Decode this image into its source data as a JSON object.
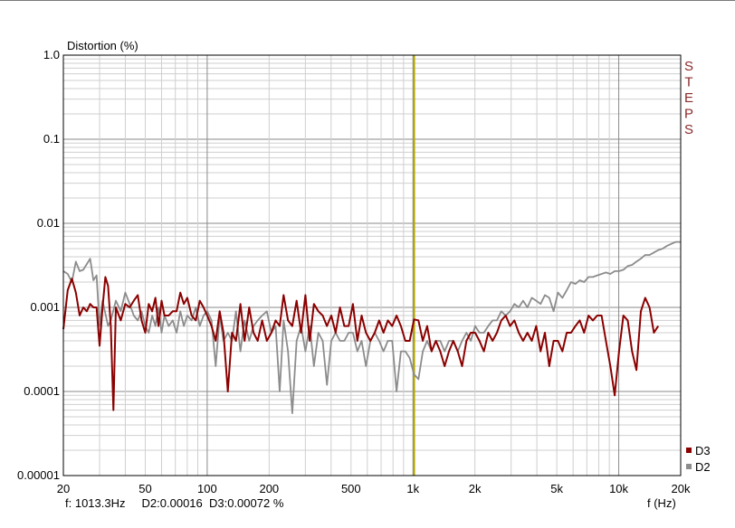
{
  "chart_data": {
    "type": "line",
    "ylabel": "Distortion (%)",
    "xlabel": "f (Hz)",
    "x_scale": "log",
    "y_scale": "log",
    "xlim": [
      20,
      20000
    ],
    "ylim": [
      1e-05,
      1.0
    ],
    "x_ticks": [
      {
        "value": 20,
        "label": "20"
      },
      {
        "value": 50,
        "label": "50"
      },
      {
        "value": 100,
        "label": "100"
      },
      {
        "value": 200,
        "label": "200"
      },
      {
        "value": 500,
        "label": "500"
      },
      {
        "value": 1000,
        "label": "1k"
      },
      {
        "value": 2000,
        "label": "2k"
      },
      {
        "value": 5000,
        "label": "5k"
      },
      {
        "value": 10000,
        "label": "10k"
      },
      {
        "value": 20000,
        "label": "20k"
      }
    ],
    "y_ticks": [
      {
        "value": 1.0,
        "label": "1.0"
      },
      {
        "value": 0.1,
        "label": "0.1"
      },
      {
        "value": 0.01,
        "label": "0.01"
      },
      {
        "value": 0.001,
        "label": "0.001"
      },
      {
        "value": 0.0001,
        "label": "0.0001"
      },
      {
        "value": 1e-05,
        "label": "0.00001"
      }
    ],
    "grid": true,
    "legend_position": "bottom-right",
    "brand_text": "STEPS",
    "cursor": {
      "x": 1013.3,
      "color": "#b5a800",
      "readout": "f: 1013.3Hz     D2:0.00016  D3:0.00072 %"
    },
    "series": [
      {
        "name": "D2",
        "color": "#8c8c8c",
        "points": [
          [
            20,
            0.0027
          ],
          [
            21,
            0.0025
          ],
          [
            22,
            0.002
          ],
          [
            23,
            0.0035
          ],
          [
            24,
            0.0027
          ],
          [
            25,
            0.0028
          ],
          [
            27,
            0.0038
          ],
          [
            28,
            0.0021
          ],
          [
            29,
            0.0024
          ],
          [
            30,
            0.0006
          ],
          [
            31,
            0.0012
          ],
          [
            33,
            0.0006
          ],
          [
            34,
            0.0007
          ],
          [
            36,
            0.0012
          ],
          [
            38,
            0.0009
          ],
          [
            40,
            0.0015
          ],
          [
            42,
            0.0011
          ],
          [
            44,
            0.0008
          ],
          [
            46,
            0.0007
          ],
          [
            48,
            0.0009
          ],
          [
            50,
            0.0006
          ],
          [
            52,
            0.0005
          ],
          [
            54,
            0.0008
          ],
          [
            56,
            0.0006
          ],
          [
            58,
            0.001
          ],
          [
            60,
            0.0005
          ],
          [
            62,
            0.0008
          ],
          [
            65,
            0.0006
          ],
          [
            68,
            0.0007
          ],
          [
            71,
            0.0005
          ],
          [
            74,
            0.0009
          ],
          [
            77,
            0.0006
          ],
          [
            80,
            0.0008
          ],
          [
            84,
            0.0007
          ],
          [
            88,
            0.001
          ],
          [
            92,
            0.0006
          ],
          [
            96,
            0.0008
          ],
          [
            100,
            0.0009
          ],
          [
            105,
            0.0007
          ],
          [
            110,
            0.0002
          ],
          [
            115,
            0.0008
          ],
          [
            120,
            0.0004
          ],
          [
            126,
            0.0005
          ],
          [
            132,
            0.0004
          ],
          [
            138,
            0.0009
          ],
          [
            145,
            0.0003
          ],
          [
            152,
            0.0007
          ],
          [
            160,
            0.0004
          ],
          [
            168,
            0.0006
          ],
          [
            176,
            0.0007
          ],
          [
            185,
            0.0008
          ],
          [
            195,
            0.0009
          ],
          [
            205,
            0.0005
          ],
          [
            215,
            0.0006
          ],
          [
            225,
            0.0001
          ],
          [
            235,
            0.0007
          ],
          [
            247,
            0.0003
          ],
          [
            259,
            5.5e-05
          ],
          [
            272,
            0.0004
          ],
          [
            286,
            0.0006
          ],
          [
            300,
            0.0003
          ],
          [
            315,
            0.0006
          ],
          [
            330,
            0.0002
          ],
          [
            347,
            0.0005
          ],
          [
            364,
            0.0004
          ],
          [
            382,
            0.00012
          ],
          [
            401,
            0.0004
          ],
          [
            421,
            0.0005
          ],
          [
            442,
            0.0004
          ],
          [
            464,
            0.0004
          ],
          [
            487,
            0.0005
          ],
          [
            511,
            0.0005
          ],
          [
            537,
            0.0003
          ],
          [
            563,
            0.0004
          ],
          [
            591,
            0.0002
          ],
          [
            621,
            0.0004
          ],
          [
            652,
            0.0005
          ],
          [
            685,
            0.0004
          ],
          [
            719,
            0.0003
          ],
          [
            755,
            0.0004
          ],
          [
            793,
            0.0004
          ],
          [
            832,
            0.0001
          ],
          [
            874,
            0.0003
          ],
          [
            918,
            0.0003
          ],
          [
            964,
            0.00025
          ],
          [
            1012,
            0.00016
          ],
          [
            1063,
            0.00014
          ],
          [
            1116,
            0.0003
          ],
          [
            1172,
            0.0004
          ],
          [
            1231,
            0.0003
          ],
          [
            1292,
            0.0004
          ],
          [
            1357,
            0.0004
          ],
          [
            1425,
            0.0003
          ],
          [
            1496,
            0.0004
          ],
          [
            1571,
            0.0004
          ],
          [
            1650,
            0.0003
          ],
          [
            1732,
            0.0004
          ],
          [
            1819,
            0.0005
          ],
          [
            1910,
            0.0004
          ],
          [
            2005,
            0.0006
          ],
          [
            2105,
            0.0005
          ],
          [
            2211,
            0.0005
          ],
          [
            2321,
            0.0006
          ],
          [
            2437,
            0.0007
          ],
          [
            2559,
            0.0007
          ],
          [
            2687,
            0.0009
          ],
          [
            2822,
            0.0008
          ],
          [
            2963,
            0.0009
          ],
          [
            3111,
            0.0011
          ],
          [
            3266,
            0.001
          ],
          [
            3430,
            0.0012
          ],
          [
            3601,
            0.001
          ],
          [
            3781,
            0.0013
          ],
          [
            3970,
            0.0012
          ],
          [
            4169,
            0.0011
          ],
          [
            4377,
            0.0014
          ],
          [
            4596,
            0.0013
          ],
          [
            4826,
            0.0009
          ],
          [
            5067,
            0.0015
          ],
          [
            5321,
            0.0013
          ],
          [
            5587,
            0.0016
          ],
          [
            5866,
            0.002
          ],
          [
            6159,
            0.0019
          ],
          [
            6467,
            0.0021
          ],
          [
            6790,
            0.002
          ],
          [
            7130,
            0.0023
          ],
          [
            7486,
            0.0023
          ],
          [
            7861,
            0.0024
          ],
          [
            8254,
            0.0025
          ],
          [
            8666,
            0.0026
          ],
          [
            9100,
            0.0025
          ],
          [
            9555,
            0.0027
          ],
          [
            10032,
            0.0027
          ],
          [
            10534,
            0.0028
          ],
          [
            11061,
            0.0031
          ],
          [
            11614,
            0.0032
          ],
          [
            12194,
            0.0035
          ],
          [
            12804,
            0.0038
          ],
          [
            13444,
            0.0042
          ],
          [
            14116,
            0.0042
          ],
          [
            14822,
            0.0045
          ],
          [
            15563,
            0.0048
          ],
          [
            16341,
            0.005
          ],
          [
            17158,
            0.0054
          ],
          [
            18016,
            0.0057
          ],
          [
            18917,
            0.006
          ],
          [
            20000,
            0.006
          ]
        ]
      },
      {
        "name": "D3",
        "color": "#8b0000",
        "points": [
          [
            20,
            0.00055
          ],
          [
            21,
            0.0016
          ],
          [
            22,
            0.0022
          ],
          [
            23,
            0.0015
          ],
          [
            24,
            0.0008
          ],
          [
            25,
            0.001
          ],
          [
            26,
            0.0009
          ],
          [
            27,
            0.0011
          ],
          [
            28,
            0.001
          ],
          [
            29,
            0.001
          ],
          [
            30,
            0.00035
          ],
          [
            31,
            0.001
          ],
          [
            32,
            0.0023
          ],
          [
            33,
            0.0018
          ],
          [
            34,
            0.0006
          ],
          [
            35,
            6e-05
          ],
          [
            36,
            0.001
          ],
          [
            38,
            0.0007
          ],
          [
            40,
            0.0011
          ],
          [
            42,
            0.001
          ],
          [
            44,
            0.0012
          ],
          [
            46,
            0.0014
          ],
          [
            48,
            0.0007
          ],
          [
            50,
            0.0005
          ],
          [
            52,
            0.0011
          ],
          [
            54,
            0.0009
          ],
          [
            56,
            0.0013
          ],
          [
            58,
            0.0006
          ],
          [
            60,
            0.0012
          ],
          [
            62,
            0.0008
          ],
          [
            65,
            0.0008
          ],
          [
            68,
            0.0009
          ],
          [
            71,
            0.0009
          ],
          [
            74,
            0.0015
          ],
          [
            77,
            0.0011
          ],
          [
            80,
            0.0013
          ],
          [
            84,
            0.0008
          ],
          [
            88,
            0.0007
          ],
          [
            92,
            0.0012
          ],
          [
            96,
            0.001
          ],
          [
            100,
            0.0008
          ],
          [
            105,
            0.0006
          ],
          [
            110,
            0.0004
          ],
          [
            115,
            0.0009
          ],
          [
            120,
            0.0005
          ],
          [
            126,
            0.0001
          ],
          [
            132,
            0.0005
          ],
          [
            138,
            0.0004
          ],
          [
            145,
            0.0011
          ],
          [
            152,
            0.0004
          ],
          [
            160,
            0.001
          ],
          [
            168,
            0.0005
          ],
          [
            176,
            0.0004
          ],
          [
            185,
            0.0007
          ],
          [
            195,
            0.0004
          ],
          [
            205,
            0.0005
          ],
          [
            215,
            0.0007
          ],
          [
            225,
            0.0006
          ],
          [
            235,
            0.0014
          ],
          [
            247,
            0.0007
          ],
          [
            259,
            0.0006
          ],
          [
            272,
            0.0012
          ],
          [
            286,
            0.0005
          ],
          [
            300,
            0.0014
          ],
          [
            315,
            0.0004
          ],
          [
            330,
            0.0011
          ],
          [
            347,
            0.0009
          ],
          [
            364,
            0.0008
          ],
          [
            382,
            0.0006
          ],
          [
            401,
            0.0008
          ],
          [
            421,
            0.0005
          ],
          [
            442,
            0.001
          ],
          [
            464,
            0.0006
          ],
          [
            487,
            0.0006
          ],
          [
            511,
            0.0011
          ],
          [
            537,
            0.0004
          ],
          [
            563,
            0.0008
          ],
          [
            591,
            0.0005
          ],
          [
            621,
            0.0004
          ],
          [
            652,
            0.0005
          ],
          [
            685,
            0.0007
          ],
          [
            719,
            0.0005
          ],
          [
            755,
            0.0007
          ],
          [
            793,
            0.0006
          ],
          [
            832,
            0.0008
          ],
          [
            874,
            0.0006
          ],
          [
            918,
            0.0004
          ],
          [
            964,
            0.0004
          ],
          [
            1012,
            0.00072
          ],
          [
            1063,
            0.0007
          ],
          [
            1116,
            0.0004
          ],
          [
            1172,
            0.0006
          ],
          [
            1231,
            0.0003
          ],
          [
            1292,
            0.0004
          ],
          [
            1357,
            0.0003
          ],
          [
            1425,
            0.0002
          ],
          [
            1496,
            0.0003
          ],
          [
            1571,
            0.0004
          ],
          [
            1650,
            0.0003
          ],
          [
            1732,
            0.0002
          ],
          [
            1819,
            0.0004
          ],
          [
            1910,
            0.0005
          ],
          [
            2005,
            0.0005
          ],
          [
            2105,
            0.0004
          ],
          [
            2211,
            0.0003
          ],
          [
            2321,
            0.0005
          ],
          [
            2437,
            0.0004
          ],
          [
            2559,
            0.0005
          ],
          [
            2687,
            0.0007
          ],
          [
            2822,
            0.0008
          ],
          [
            2963,
            0.0006
          ],
          [
            3111,
            0.0007
          ],
          [
            3266,
            0.0005
          ],
          [
            3430,
            0.0004
          ],
          [
            3601,
            0.0005
          ],
          [
            3781,
            0.0004
          ],
          [
            3970,
            0.0006
          ],
          [
            4169,
            0.0003
          ],
          [
            4377,
            0.0005
          ],
          [
            4596,
            0.0002
          ],
          [
            4826,
            0.0004
          ],
          [
            5067,
            0.0004
          ],
          [
            5321,
            0.0003
          ],
          [
            5587,
            0.0005
          ],
          [
            5866,
            0.0005
          ],
          [
            6159,
            0.0006
          ],
          [
            6467,
            0.0007
          ],
          [
            6790,
            0.0005
          ],
          [
            7130,
            0.0008
          ],
          [
            7486,
            0.0007
          ],
          [
            7861,
            0.0008
          ],
          [
            8254,
            0.0008
          ],
          [
            8666,
            0.0004
          ],
          [
            9100,
            0.0002
          ],
          [
            9555,
            9e-05
          ],
          [
            10032,
            0.0003
          ],
          [
            10534,
            0.0008
          ],
          [
            11061,
            0.0007
          ],
          [
            11614,
            0.0003
          ],
          [
            12194,
            0.00018
          ],
          [
            12804,
            0.0009
          ],
          [
            13444,
            0.0013
          ],
          [
            14116,
            0.001
          ],
          [
            14822,
            0.0005
          ],
          [
            15563,
            0.0006
          ]
        ]
      }
    ]
  }
}
